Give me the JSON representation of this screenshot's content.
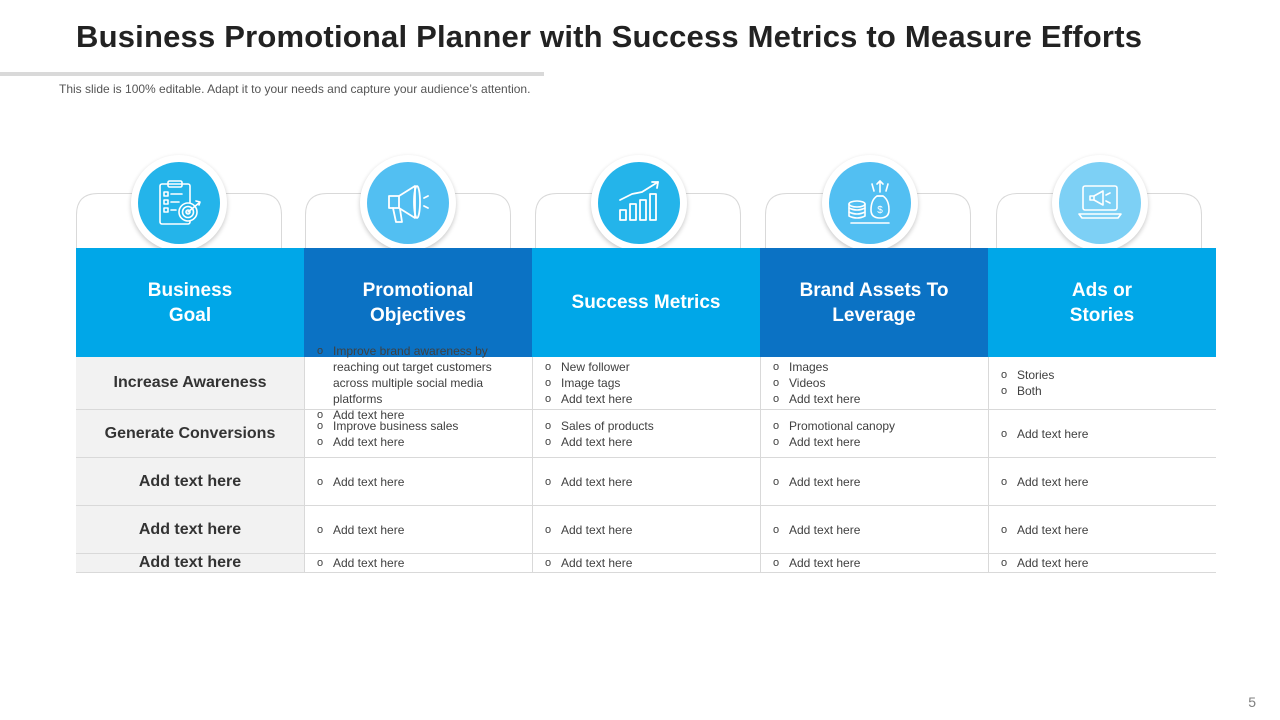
{
  "slide": {
    "title": "Business Promotional Planner with Success Metrics to Measure Efforts",
    "subtitle": "This slide is 100% editable. Adapt it to your needs and capture your audience’s attention.",
    "page_number": "5"
  },
  "colors": {
    "header_light": "#00a7e8",
    "header_dark": "#0b72c4",
    "row_label_bg": "#f2f2f2",
    "icon_1": "#24b4ea",
    "icon_2": "#52bff2",
    "icon_3": "#24b4ea",
    "icon_4": "#52bff2",
    "icon_5": "#7dd0f5"
  },
  "bullet_glyph": "o",
  "icons": [
    "target-checklist-icon",
    "megaphone-icon",
    "growth-chart-icon",
    "coins-money-bag-icon",
    "laptop-ad-icon"
  ],
  "columns": [
    "Business\nGoal",
    "Promotional\nObjectives",
    "Success Metrics",
    "Brand Assets To\nLeverage",
    "Ads or\nStories"
  ],
  "rows": [
    {
      "label": "Increase Awareness",
      "cells": [
        [
          "Improve  brand awareness  by reaching out target customers across multiple social media platforms",
          "Add text here"
        ],
        [
          "New follower",
          "Image tags",
          "Add text here"
        ],
        [
          "Images",
          "Videos",
          "Add text here"
        ],
        [
          "Stories",
          "Both"
        ]
      ]
    },
    {
      "label": "Generate Conversions",
      "cells": [
        [
          "Improve  business sales",
          "Add text here"
        ],
        [
          "Sales of products",
          "Add text here"
        ],
        [
          "Promotional canopy",
          "Add text here"
        ],
        [
          "Add text here"
        ]
      ]
    },
    {
      "label": "Add text here",
      "cells": [
        [
          "Add text here"
        ],
        [
          "Add text here"
        ],
        [
          "Add text here"
        ],
        [
          "Add text here"
        ]
      ]
    },
    {
      "label": "Add text here",
      "cells": [
        [
          "Add text here"
        ],
        [
          "Add text here"
        ],
        [
          "Add text here"
        ],
        [
          "Add text here"
        ]
      ]
    },
    {
      "label": "Add text here",
      "cells": [
        [
          "Add text here"
        ],
        [
          "Add text here"
        ],
        [
          "Add text here"
        ],
        [
          "Add text here"
        ]
      ]
    }
  ]
}
